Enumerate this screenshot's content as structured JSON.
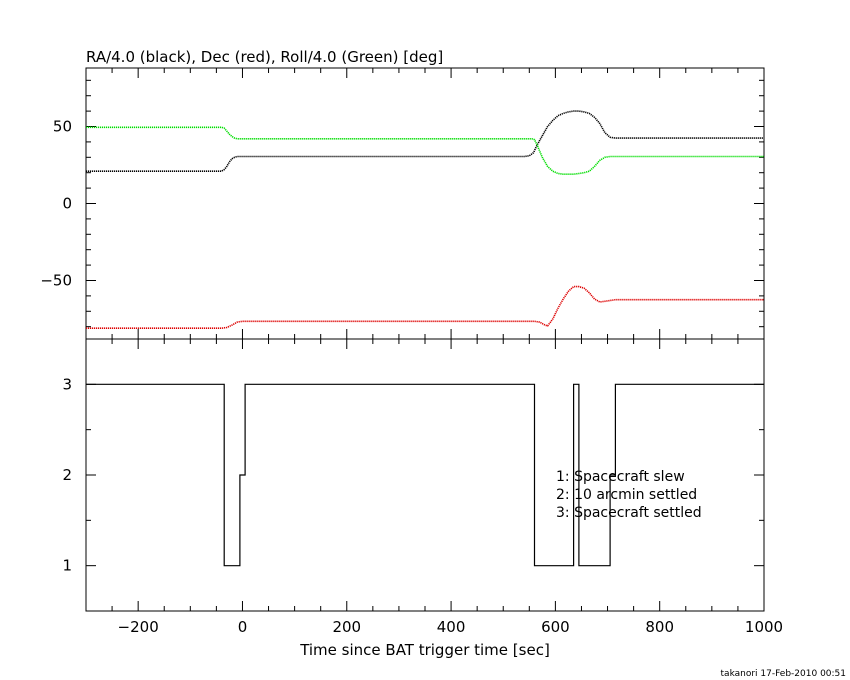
{
  "title": "RA/4.0 (black), Dec (red), Roll/4.0 (Green) [deg]",
  "footer": "takanori 17-Feb-2010 00:51",
  "colors": {
    "ra": "#000000",
    "dec": "#dd0000",
    "roll": "#00dd00",
    "axis": "#000000"
  },
  "chart_data": [
    {
      "type": "line",
      "title": "RA/4.0 (black), Dec (red), Roll/4.0 (Green) [deg]",
      "xlim": [
        -300,
        1000
      ],
      "ylim": [
        -88,
        88
      ],
      "yticks": [
        50,
        0,
        -50
      ],
      "ytick_labels": [
        "50",
        "0",
        "−50"
      ],
      "series": [
        {
          "name": "RA/4.0 (black)",
          "color_key": "ra",
          "x": [
            -300,
            -40,
            -35,
            -30,
            -25,
            -20,
            -15,
            -10,
            0,
            540,
            550,
            558,
            565,
            575,
            585,
            595,
            605,
            615,
            625,
            635,
            645,
            655,
            665,
            675,
            685,
            695,
            705,
            715,
            1000
          ],
          "y": [
            21,
            21,
            22,
            24,
            27,
            29,
            30,
            30.5,
            30.5,
            30.5,
            31,
            33,
            38,
            44,
            50,
            54,
            57,
            58.5,
            59.5,
            60,
            60,
            59.5,
            58.5,
            56,
            52,
            46,
            43,
            42.5,
            42.5
          ]
        },
        {
          "name": "Dec (red)",
          "color_key": "dec",
          "x": [
            -300,
            -40,
            -30,
            -20,
            -10,
            0,
            560,
            570,
            580,
            585,
            595,
            605,
            615,
            625,
            635,
            645,
            655,
            665,
            675,
            685,
            695,
            705,
            715,
            1000
          ],
          "y": [
            -81,
            -81,
            -80.5,
            -79,
            -77,
            -76.5,
            -76.5,
            -77,
            -79,
            -79.5,
            -75,
            -68,
            -62,
            -57,
            -54,
            -54,
            -55,
            -58,
            -62,
            -64,
            -63.5,
            -63,
            -62.5,
            -62.5
          ]
        },
        {
          "name": "Roll/4.0 (Green)",
          "color_key": "roll",
          "x": [
            -300,
            -40,
            -35,
            -30,
            -25,
            -20,
            -15,
            -10,
            0,
            555,
            560,
            565,
            575,
            585,
            595,
            605,
            615,
            625,
            635,
            645,
            655,
            665,
            675,
            685,
            695,
            705,
            715,
            1000
          ],
          "y": [
            49.5,
            49.5,
            49,
            47,
            45,
            43.5,
            42.5,
            42,
            42,
            42,
            41.5,
            38,
            30,
            24,
            21,
            19.5,
            19,
            19,
            19,
            19.5,
            20,
            21,
            24,
            28,
            30,
            30.5,
            30.5,
            30.5
          ]
        }
      ]
    },
    {
      "type": "line",
      "xlabel": "Time since BAT trigger time [sec]",
      "xlim": [
        -300,
        1000
      ],
      "ylim": [
        0.5,
        3.5
      ],
      "xticks": [
        -200,
        0,
        200,
        400,
        600,
        800,
        1000
      ],
      "xtick_labels": [
        "−200",
        "0",
        "200",
        "400",
        "600",
        "800",
        "1000"
      ],
      "yticks": [
        3,
        2,
        1
      ],
      "ytick_labels": [
        "3",
        "2",
        "1"
      ],
      "series": [
        {
          "step": true,
          "x": [
            -300,
            -35,
            -35,
            -5,
            -5,
            5,
            5,
            560,
            560,
            635,
            635,
            645,
            645,
            705,
            705,
            715,
            715,
            1000
          ],
          "y": [
            3,
            3,
            1,
            1,
            2,
            2,
            3,
            3,
            1,
            1,
            3,
            3,
            1,
            1,
            2,
            2,
            3,
            3
          ]
        }
      ],
      "annotations": [
        "1: Spacecraft slew",
        "2: 10 arcmin settled",
        "3: Spacecraft settled"
      ]
    }
  ]
}
